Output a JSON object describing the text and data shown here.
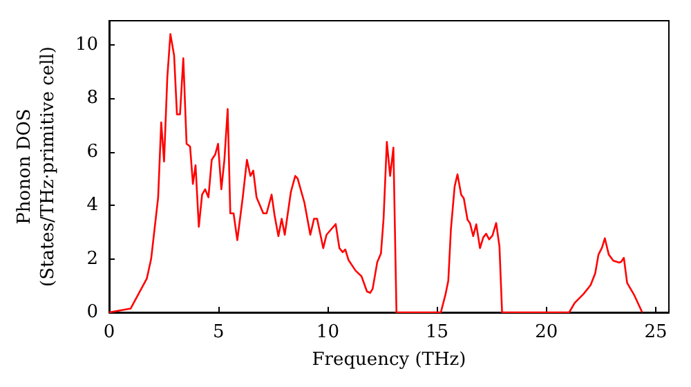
{
  "chart_data": {
    "type": "line",
    "xlabel": "Frequency (THz)",
    "ylabel": "Phonon DOS\n(States/THz·primitive cell)",
    "xlim": [
      0,
      25.6
    ],
    "xticks": [
      0,
      5,
      10,
      15,
      20,
      25
    ],
    "ylim": [
      0,
      10.9
    ],
    "yticks": [
      0,
      2,
      4,
      6,
      8,
      10
    ],
    "grid": false,
    "marker": "none",
    "line_style": "solid",
    "series": [
      {
        "color": "#ff0000",
        "x": [
          0,
          0.98,
          1.72,
          1.92,
          2.24,
          2.38,
          2.51,
          2.66,
          2.8,
          2.97,
          3.1,
          3.24,
          3.39,
          3.54,
          3.7,
          3.83,
          3.95,
          4.1,
          4.25,
          4.39,
          4.54,
          4.69,
          4.85,
          4.98,
          5.13,
          5.27,
          5.42,
          5.54,
          5.69,
          5.86,
          6.11,
          6.3,
          6.46,
          6.59,
          6.74,
          7.05,
          7.2,
          7.43,
          7.57,
          7.74,
          7.89,
          8.03,
          8.31,
          8.51,
          8.62,
          8.93,
          9.2,
          9.37,
          9.51,
          9.79,
          9.94,
          10.15,
          10.36,
          10.53,
          10.68,
          10.8,
          10.95,
          11.27,
          11.54,
          11.79,
          11.94,
          12.05,
          12.26,
          12.43,
          12.55,
          12.7,
          12.85,
          13.0,
          13.14,
          15.17,
          15.38,
          15.51,
          15.63,
          15.8,
          15.93,
          16.1,
          16.22,
          16.39,
          16.5,
          16.65,
          16.79,
          16.96,
          17.11,
          17.24,
          17.38,
          17.53,
          17.7,
          17.85,
          17.97,
          21.04,
          21.29,
          21.71,
          22.02,
          22.23,
          22.38,
          22.54,
          22.67,
          22.85,
          23.06,
          23.33,
          23.42,
          23.54,
          23.69,
          24.0,
          24.38
        ],
        "values": [
          0,
          0.14,
          1.26,
          2.0,
          4.3,
          7.1,
          5.64,
          8.8,
          10.4,
          9.6,
          7.4,
          7.4,
          9.5,
          6.3,
          6.2,
          4.8,
          5.5,
          3.2,
          4.4,
          4.6,
          4.3,
          5.7,
          5.9,
          6.3,
          4.6,
          5.7,
          7.6,
          3.7,
          3.7,
          2.7,
          4.3,
          5.7,
          5.1,
          5.3,
          4.3,
          3.7,
          3.7,
          4.4,
          3.6,
          2.85,
          3.5,
          2.9,
          4.5,
          5.1,
          5.0,
          4.1,
          2.9,
          3.5,
          3.5,
          2.4,
          2.9,
          3.1,
          3.3,
          2.4,
          2.25,
          2.35,
          1.95,
          1.56,
          1.35,
          0.78,
          0.73,
          0.88,
          1.87,
          2.2,
          3.5,
          6.37,
          5.1,
          6.16,
          0,
          0,
          0.66,
          1.18,
          3.1,
          4.7,
          5.16,
          4.4,
          4.26,
          3.46,
          3.34,
          2.85,
          3.29,
          2.4,
          2.8,
          2.94,
          2.73,
          2.87,
          3.34,
          2.47,
          0,
          0,
          0.35,
          0.7,
          1.02,
          1.46,
          2.16,
          2.42,
          2.77,
          2.16,
          1.93,
          1.86,
          1.89,
          2.04,
          1.1,
          0.67,
          0
        ]
      }
    ]
  }
}
